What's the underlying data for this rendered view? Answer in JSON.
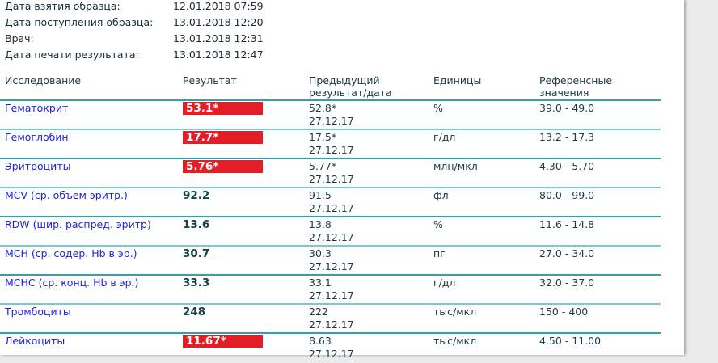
{
  "meta": [
    {
      "label": "Дата взятия образца:",
      "value": "12.01.2018 07:59"
    },
    {
      "label": "Дата поступления образца:",
      "value": "13.01.2018 12:20"
    },
    {
      "label": "Врач:",
      "value": "13.01.2018 12:31"
    },
    {
      "label": "Дата печати результата:",
      "value": "13.01.2018 12:47"
    }
  ],
  "columns": {
    "test": "Исследование",
    "result": "Результат",
    "prev1": "Предыдущий",
    "prev2": "результат/дата",
    "units": "Единицы",
    "ref1": "Референсные",
    "ref2": "значения"
  },
  "colors": {
    "abnormal": "#e31e24",
    "test_name": "#2222dd",
    "divider": "#2aa2b4"
  },
  "rows": [
    {
      "name": "Гематокрит",
      "result": "53.1*",
      "abnormal": true,
      "prev": "52.8*",
      "prev_date": "27.12.17",
      "units": "%",
      "ref": "39.0 - 49.0"
    },
    {
      "name": "Гемоглобин",
      "result": "17.7*",
      "abnormal": true,
      "prev": "17.5*",
      "prev_date": "27.12.17",
      "units": "г/дл",
      "ref": "13.2 - 17.3"
    },
    {
      "name": "Эритроциты",
      "result": "5.76*",
      "abnormal": true,
      "prev": "5.77*",
      "prev_date": "27.12.17",
      "units": "млн/мкл",
      "ref": "4.30 - 5.70"
    },
    {
      "name": "MCV (ср. объем эритр.)",
      "result": "92.2",
      "abnormal": false,
      "prev": "91.5",
      "prev_date": "27.12.17",
      "units": "фл",
      "ref": "80.0 - 99.0"
    },
    {
      "name": "RDW (шир. распред. эритр)",
      "result": "13.6",
      "abnormal": false,
      "prev": "13.8",
      "prev_date": "27.12.17",
      "units": "%",
      "ref": "11.6 - 14.8"
    },
    {
      "name": "MCH (ср. содер. Hb в эр.)",
      "result": "30.7",
      "abnormal": false,
      "prev": "30.3",
      "prev_date": "27.12.17",
      "units": "пг",
      "ref": "27.0 - 34.0"
    },
    {
      "name": "MCHC (ср. конц. Hb в эр.)",
      "result": "33.3",
      "abnormal": false,
      "prev": "33.1",
      "prev_date": "27.12.17",
      "units": "г/дл",
      "ref": "32.0 - 37.0"
    },
    {
      "name": "Тромбоциты",
      "result": "248",
      "abnormal": false,
      "prev": "222",
      "prev_date": "27.12.17",
      "units": "тыс/мкл",
      "ref": "150 - 400"
    },
    {
      "name": "Лейкоциты",
      "result": "11.67*",
      "abnormal": true,
      "prev": "8.63",
      "prev_date": "27.12.17",
      "units": "тыс/мкл",
      "ref": "4.50 - 11.00"
    }
  ]
}
